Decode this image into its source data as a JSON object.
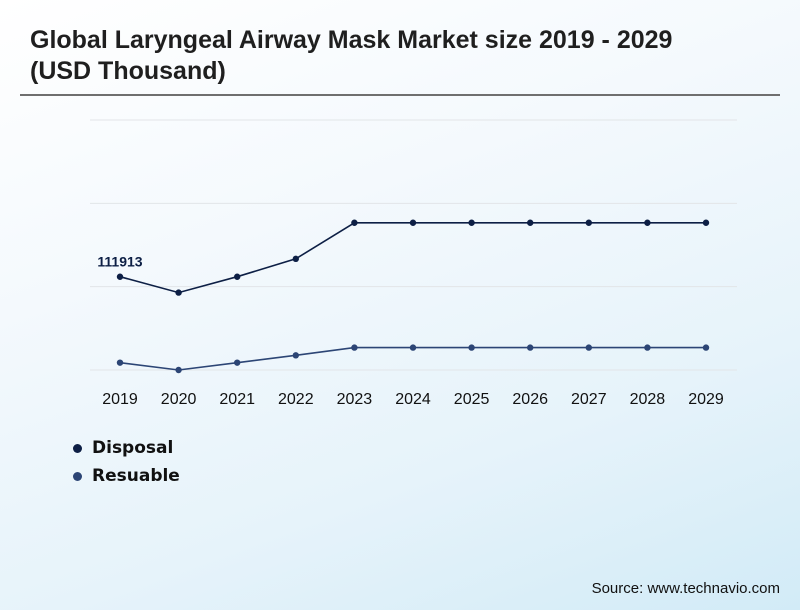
{
  "title": "Global Laryngeal Airway Mask Market size 2019 - 2029 (USD Thousand)",
  "source": "Source: www.technavio.com",
  "colors": {
    "disposal": "#0d1f45",
    "resuable": "#2c4575",
    "grid": "#e2e5e8"
  },
  "chart_data": {
    "type": "line",
    "title": "Global Laryngeal Airway Mask Market size 2019 - 2029 (USD Thousand)",
    "xlabel": "",
    "ylabel": "",
    "y_axis_labels_shown": false,
    "grid": true,
    "legend_position": "bottom-left",
    "categories": [
      "2019",
      "2020",
      "2021",
      "2022",
      "2023",
      "2024",
      "2025",
      "2026",
      "2027",
      "2028",
      "2029"
    ],
    "series": [
      {
        "name": "Disposal",
        "values": [
          111913,
          92900,
          111913,
          133400,
          176700,
          176700,
          176700,
          176700,
          176700,
          176700,
          176700
        ]
      },
      {
        "name": "Resuable",
        "values": [
          8800,
          0,
          8800,
          17600,
          26900,
          26900,
          26900,
          26900,
          26900,
          26900,
          26900
        ]
      }
    ],
    "data_labels": [
      {
        "series": "Disposal",
        "category": "2019",
        "text": "111913"
      }
    ],
    "ylim": [
      0,
      300000
    ]
  }
}
